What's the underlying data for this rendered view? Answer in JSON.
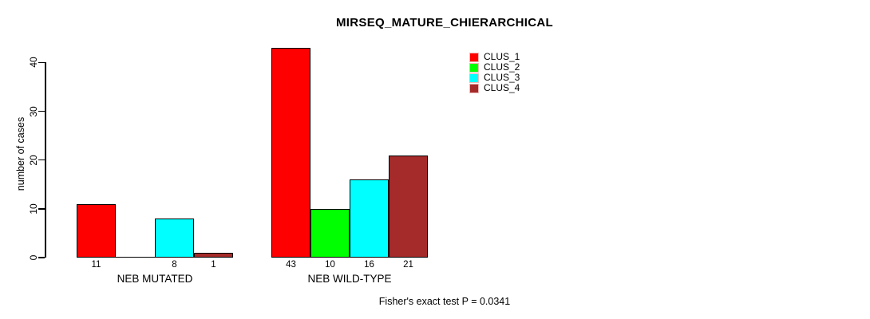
{
  "chart": {
    "title": "MIRSEQ_MATURE_CHIERARCHICAL",
    "y_axis_label": "number of cases",
    "footer": "Fisher's exact test P = 0.0341"
  },
  "chart_data": {
    "type": "bar",
    "title": "MIRSEQ_MATURE_CHIERARCHICAL",
    "xlabel": "",
    "ylabel": "number of cases",
    "categories": [
      "NEB MUTATED",
      "NEB WILD-TYPE"
    ],
    "series": [
      {
        "name": "CLUS_1",
        "color": "#ff0000",
        "values": [
          11,
          43
        ]
      },
      {
        "name": "CLUS_2",
        "color": "#00ff00",
        "values": [
          0,
          10
        ]
      },
      {
        "name": "CLUS_3",
        "color": "#00ffff",
        "values": [
          8,
          16
        ]
      },
      {
        "name": "CLUS_4",
        "color": "#a52a2a",
        "values": [
          1,
          21
        ]
      }
    ],
    "bar_value_labels": [
      [
        "11",
        "",
        "8",
        "1"
      ],
      [
        "43",
        "10",
        "16",
        "21"
      ]
    ],
    "yticks": [
      0,
      10,
      20,
      30,
      40
    ],
    "ylim": [
      0,
      43
    ],
    "grid": false,
    "legend_position": "top-right",
    "legend_entries": [
      "CLUS_1",
      "CLUS_2",
      "CLUS_3",
      "CLUS_4"
    ],
    "annotation": "Fisher's exact test P = 0.0341",
    "bar_border_color": "#000000",
    "background_color": "#ffffff"
  }
}
